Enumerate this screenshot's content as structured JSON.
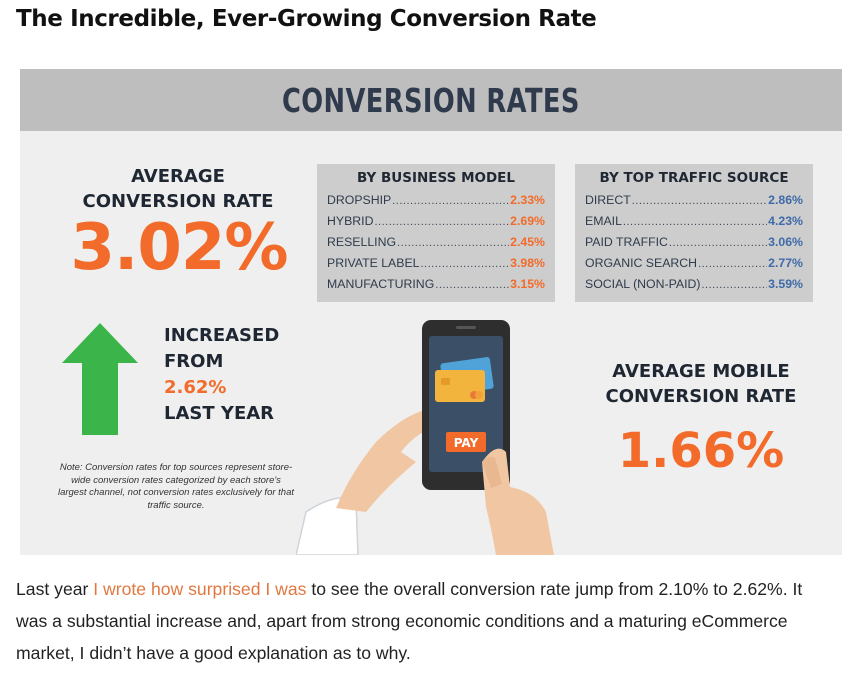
{
  "heading": "The Incredible, Ever-Growing Conversion Rate",
  "infographic": {
    "banner_title": "CONVERSION RATES",
    "average": {
      "label_line1": "AVERAGE",
      "label_line2": "CONVERSION RATE",
      "value": "3.02%"
    },
    "by_business_model": {
      "title": "BY BUSINESS MODEL",
      "rows": [
        {
          "name": "DROPSHIP",
          "value": "2.33%"
        },
        {
          "name": "HYBRID",
          "value": "2.69%"
        },
        {
          "name": "RESELLING",
          "value": "2.45%"
        },
        {
          "name": "PRIVATE LABEL",
          "value": "3.98%"
        },
        {
          "name": "MANUFACTURING",
          "value": "3.15%"
        }
      ]
    },
    "by_traffic_source": {
      "title": "BY TOP TRAFFIC SOURCE",
      "rows": [
        {
          "name": "DIRECT",
          "value": "2.86%"
        },
        {
          "name": "EMAIL",
          "value": "4.23%"
        },
        {
          "name": "PAID TRAFFIC",
          "value": "3.06%"
        },
        {
          "name": "ORGANIC SEARCH",
          "value": "2.77%"
        },
        {
          "name": "SOCIAL (NON-PAID)",
          "value": "3.59%"
        }
      ]
    },
    "increase": {
      "line1": "INCREASED",
      "line2": "FROM",
      "value": "2.62%",
      "line4": "LAST YEAR"
    },
    "note": "Note: Conversion rates for top sources represent store-wide conversion rates categorized by each store's largest channel, not conversion rates exclusively for that traffic source.",
    "pay_button": "PAY",
    "mobile": {
      "label_line1": "AVERAGE MOBILE",
      "label_line2": "CONVERSION RATE",
      "value": "1.66%"
    },
    "colors": {
      "orange": "#f26b2a",
      "blue": "#3f6aa8",
      "green": "#3bb54a",
      "banner": "#bebebe"
    }
  },
  "paragraph": {
    "before_link": "Last year ",
    "link_text": "I wrote how surprised I was",
    "after_link": " to see the overall conversion rate jump from 2.10% to 2.62%. It was a substantial increase and, apart from strong economic conditions and a maturing eCommerce market, I didn’t have a good explanation as to why."
  }
}
